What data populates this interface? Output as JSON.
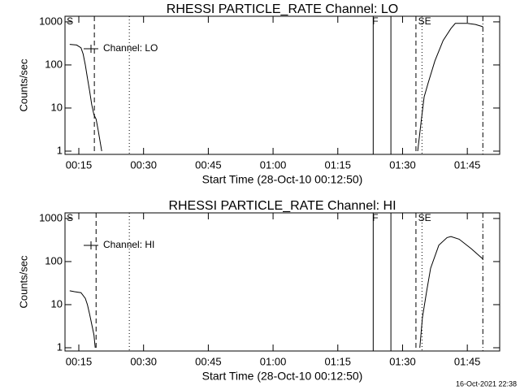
{
  "chart_data": [
    {
      "type": "line",
      "title": "RHESSI PARTICLE_RATE Channel: LO",
      "xlabel": "Start Time (28-Oct-10 00:12:50)",
      "ylabel": "Counts/sec",
      "log_y": true,
      "legend": "upper left",
      "color": "#000000",
      "xlim": [
        11.8,
        112.5
      ],
      "ylim": [
        0.84,
        1350
      ],
      "xticks": [
        {
          "value": 15,
          "label": "00:15"
        },
        {
          "value": 30,
          "label": "00:30"
        },
        {
          "value": 45,
          "label": "00:45"
        },
        {
          "value": 60,
          "label": "01:00"
        },
        {
          "value": 75,
          "label": "01:15"
        },
        {
          "value": 90,
          "label": "01:30"
        },
        {
          "value": 105,
          "label": "01:45"
        }
      ],
      "yticks": [
        1,
        10,
        100,
        1000
      ],
      "series": [
        {
          "name": "Channel: LO",
          "color": "#000000",
          "x": [
            12.9,
            14.5,
            15.5,
            16.0,
            16.5,
            17.0,
            17.5,
            18.0,
            18.5,
            19.0,
            19.5,
            20.0,
            20.3,
            60,
            93.5,
            94.3,
            95.0,
            96.0,
            97.5,
            99.4,
            101.2,
            102.2,
            105.0,
            106.9,
            108.6
          ],
          "values": [
            300,
            290,
            250,
            180,
            100,
            50,
            25,
            12,
            7,
            5.5,
            3,
            1.5,
            1.0,
            null,
            1.0,
            4.8,
            18,
            40,
            125,
            370,
            700,
            920,
            920,
            870,
            770
          ]
        }
      ],
      "vlines": [
        {
          "x": 18.6,
          "style": "dashed"
        },
        {
          "x": 26.7,
          "style": "dotted"
        },
        {
          "x": 83.2,
          "style": "solid"
        },
        {
          "x": 87.3,
          "style": "solid"
        },
        {
          "x": 93.1,
          "style": "dashed"
        },
        {
          "x": 94.5,
          "style": "dotted"
        },
        {
          "x": 108.6,
          "style": "dashdot"
        }
      ],
      "annotations": [
        {
          "text": "S",
          "x": 12.2
        },
        {
          "text": "F",
          "x": 83.0
        },
        {
          "text": "SE",
          "x": 93.6
        }
      ]
    },
    {
      "type": "line",
      "title": "RHESSI PARTICLE_RATE Channel: HI",
      "xlabel": "Start Time (28-Oct-10 00:12:50)",
      "ylabel": "Counts/sec",
      "log_y": true,
      "legend": "upper left",
      "color": "#000000",
      "xlim": [
        11.8,
        112.5
      ],
      "ylim": [
        0.84,
        1350
      ],
      "xticks": [
        {
          "value": 15,
          "label": "00:15"
        },
        {
          "value": 30,
          "label": "00:30"
        },
        {
          "value": 45,
          "label": "00:45"
        },
        {
          "value": 60,
          "label": "01:00"
        },
        {
          "value": 75,
          "label": "01:15"
        },
        {
          "value": 90,
          "label": "01:30"
        },
        {
          "value": 105,
          "label": "01:45"
        }
      ],
      "yticks": [
        1,
        10,
        100,
        1000
      ],
      "series": [
        {
          "name": "Channel: HI",
          "color": "#000000",
          "x": [
            12.9,
            14.0,
            15.5,
            16.5,
            17.0,
            17.5,
            18.0,
            18.5,
            18.8,
            60,
            94.0,
            94.6,
            95.6,
            96.5,
            98.4,
            100.3,
            101.2,
            103.1,
            105.9,
            108.6
          ],
          "values": [
            21,
            20,
            19,
            14,
            10,
            6,
            3.5,
            2,
            1,
            null,
            1,
            5,
            21,
            70,
            240,
            360,
            380,
            330,
            200,
            115
          ]
        }
      ],
      "vlines": [
        {
          "x": 19.0,
          "style": "dashed"
        },
        {
          "x": 26.7,
          "style": "dotted"
        },
        {
          "x": 83.2,
          "style": "solid"
        },
        {
          "x": 87.3,
          "style": "solid"
        },
        {
          "x": 93.1,
          "style": "dashed"
        },
        {
          "x": 94.5,
          "style": "dotted"
        },
        {
          "x": 108.6,
          "style": "dashdot"
        }
      ],
      "annotations": [
        {
          "text": "S",
          "x": 12.2
        },
        {
          "text": "F",
          "x": 83.0
        },
        {
          "text": "SE",
          "x": 93.6
        }
      ]
    }
  ],
  "footer": "16-Oct-2021 22:38"
}
